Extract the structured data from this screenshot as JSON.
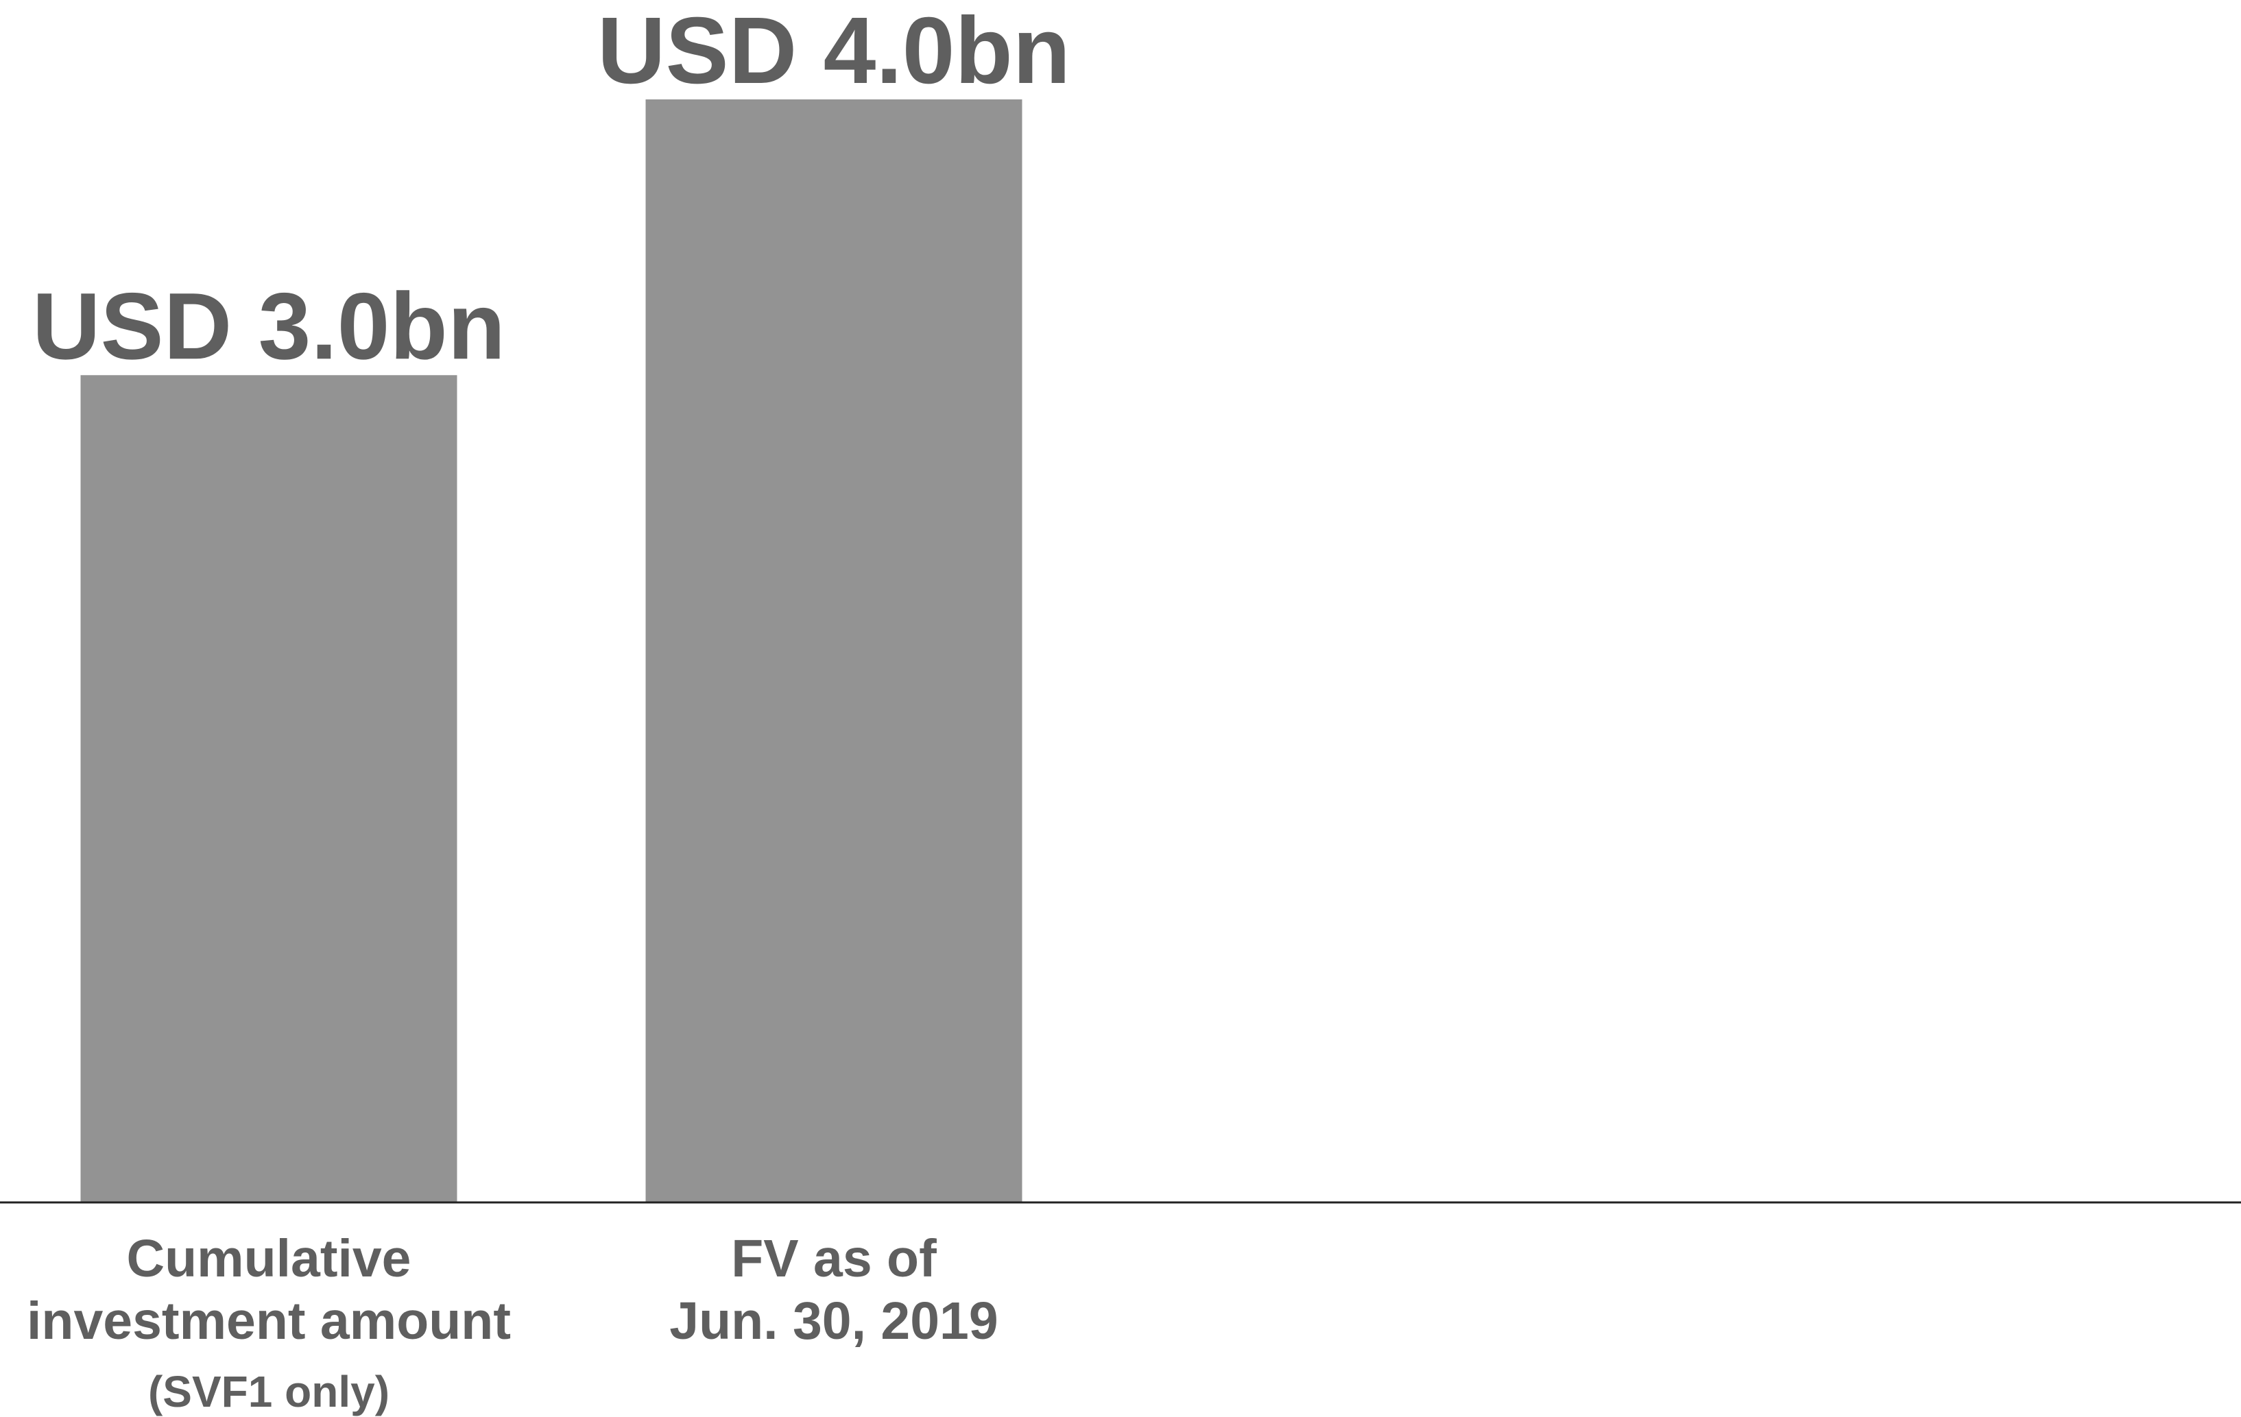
{
  "chart_data": {
    "type": "bar",
    "categories": [
      [
        "Cumulative",
        "investment amount"
      ],
      [
        "FV as of",
        "Jun. 30, 2019"
      ]
    ],
    "category_notes": [
      "(SVF1 only)",
      ""
    ],
    "values": [
      3.0,
      4.0
    ],
    "value_labels": [
      "USD 3.0bn",
      "USD 4.0bn"
    ],
    "unit": "USD bn",
    "ylim": [
      0,
      4.0
    ],
    "grid": false,
    "legend": "none"
  },
  "colors": {
    "bar": "#939393",
    "text": "#5f5f5f",
    "axis": "#222222",
    "background": "#ffffff"
  }
}
